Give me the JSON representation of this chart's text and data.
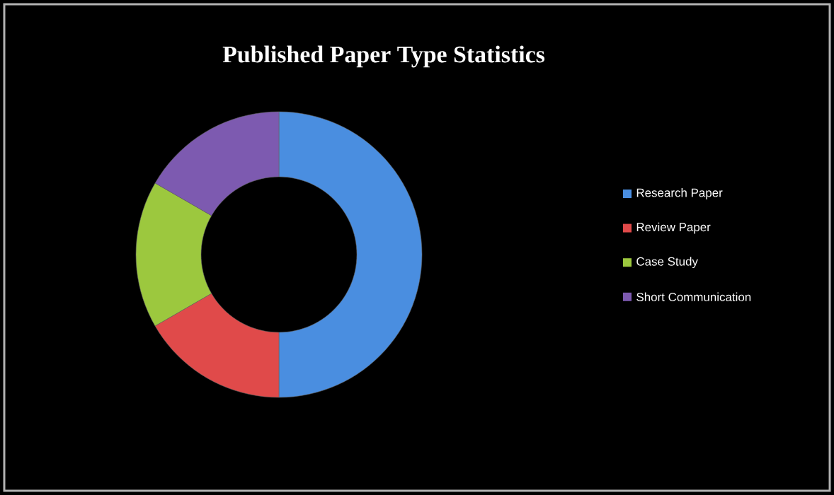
{
  "chart_data": {
    "type": "donut",
    "title": "Published Paper Type Statistics",
    "categories": [
      "Research Paper",
      "Review Paper",
      "Case Study",
      "Short Communication"
    ],
    "values": [
      50,
      16.67,
      16.67,
      16.66
    ],
    "colors": [
      "#4a8ee0",
      "#e04a4a",
      "#9cc83e",
      "#7d5ab0"
    ],
    "legend": "right"
  }
}
